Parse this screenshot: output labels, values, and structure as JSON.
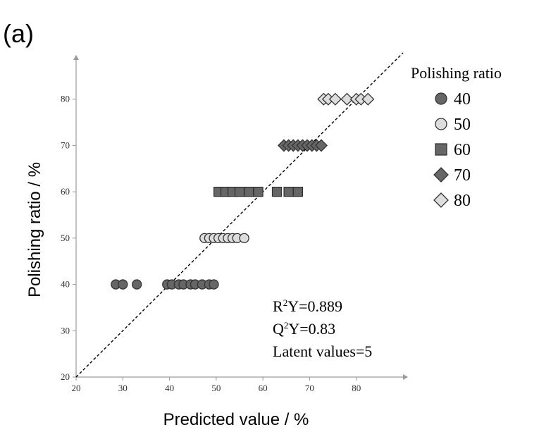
{
  "panel_label": "(a)",
  "chart_data": {
    "type": "scatter",
    "xlabel": "Predicted value / %",
    "ylabel": "Polishing ratio / %",
    "xlim": [
      20,
      90
    ],
    "ylim": [
      20,
      90
    ],
    "x_ticks": [
      20,
      30,
      40,
      50,
      60,
      70,
      80
    ],
    "y_ticks": [
      20,
      30,
      40,
      50,
      60,
      70,
      80
    ],
    "legend_title": "Polishing ratio",
    "legend_position": "top-right",
    "reference_line": {
      "style": "dashed",
      "from": [
        20,
        20
      ],
      "to": [
        90,
        90
      ]
    },
    "annotations": [
      {
        "base": "R",
        "sup": "2",
        "rest": "Y=0.889"
      },
      {
        "base": "Q",
        "sup": "2",
        "rest": "Y=0.83"
      },
      {
        "base": "",
        "sup": "",
        "rest": "Latent values=5"
      }
    ],
    "series": [
      {
        "name": "40",
        "marker": "circle",
        "color": "#666666",
        "points": [
          [
            28.5,
            40
          ],
          [
            30,
            40
          ],
          [
            33,
            40
          ],
          [
            39.5,
            40
          ],
          [
            40.5,
            40
          ],
          [
            42,
            40
          ],
          [
            43,
            40
          ],
          [
            44.5,
            40
          ],
          [
            45.5,
            40
          ],
          [
            47,
            40
          ],
          [
            48.5,
            40
          ],
          [
            49.5,
            40
          ]
        ]
      },
      {
        "name": "50",
        "marker": "circle",
        "color": "#dddddd",
        "points": [
          [
            47.5,
            50
          ],
          [
            48.5,
            50
          ],
          [
            49.5,
            50
          ],
          [
            50.5,
            50
          ],
          [
            51.5,
            50
          ],
          [
            52.5,
            50
          ],
          [
            53.5,
            50
          ],
          [
            54.5,
            50
          ],
          [
            56,
            50
          ]
        ]
      },
      {
        "name": "60",
        "marker": "square",
        "color": "#666666",
        "points": [
          [
            50.5,
            60
          ],
          [
            52,
            60
          ],
          [
            53.5,
            60
          ],
          [
            55,
            60
          ],
          [
            57,
            60
          ],
          [
            59,
            60
          ],
          [
            63,
            60
          ],
          [
            65.5,
            60
          ],
          [
            67.5,
            60
          ]
        ]
      },
      {
        "name": "70",
        "marker": "diamond",
        "color": "#666666",
        "points": [
          [
            64.5,
            70
          ],
          [
            65.5,
            70
          ],
          [
            66.5,
            70
          ],
          [
            67.5,
            70
          ],
          [
            68.5,
            70
          ],
          [
            69.5,
            70
          ],
          [
            70.5,
            70
          ],
          [
            71.5,
            70
          ],
          [
            72.5,
            70
          ]
        ]
      },
      {
        "name": "80",
        "marker": "diamond",
        "color": "#dddddd",
        "points": [
          [
            73,
            80
          ],
          [
            74,
            80
          ],
          [
            75.5,
            80
          ],
          [
            78,
            80
          ],
          [
            80,
            80
          ],
          [
            81,
            80
          ],
          [
            82.5,
            80
          ]
        ]
      }
    ]
  }
}
